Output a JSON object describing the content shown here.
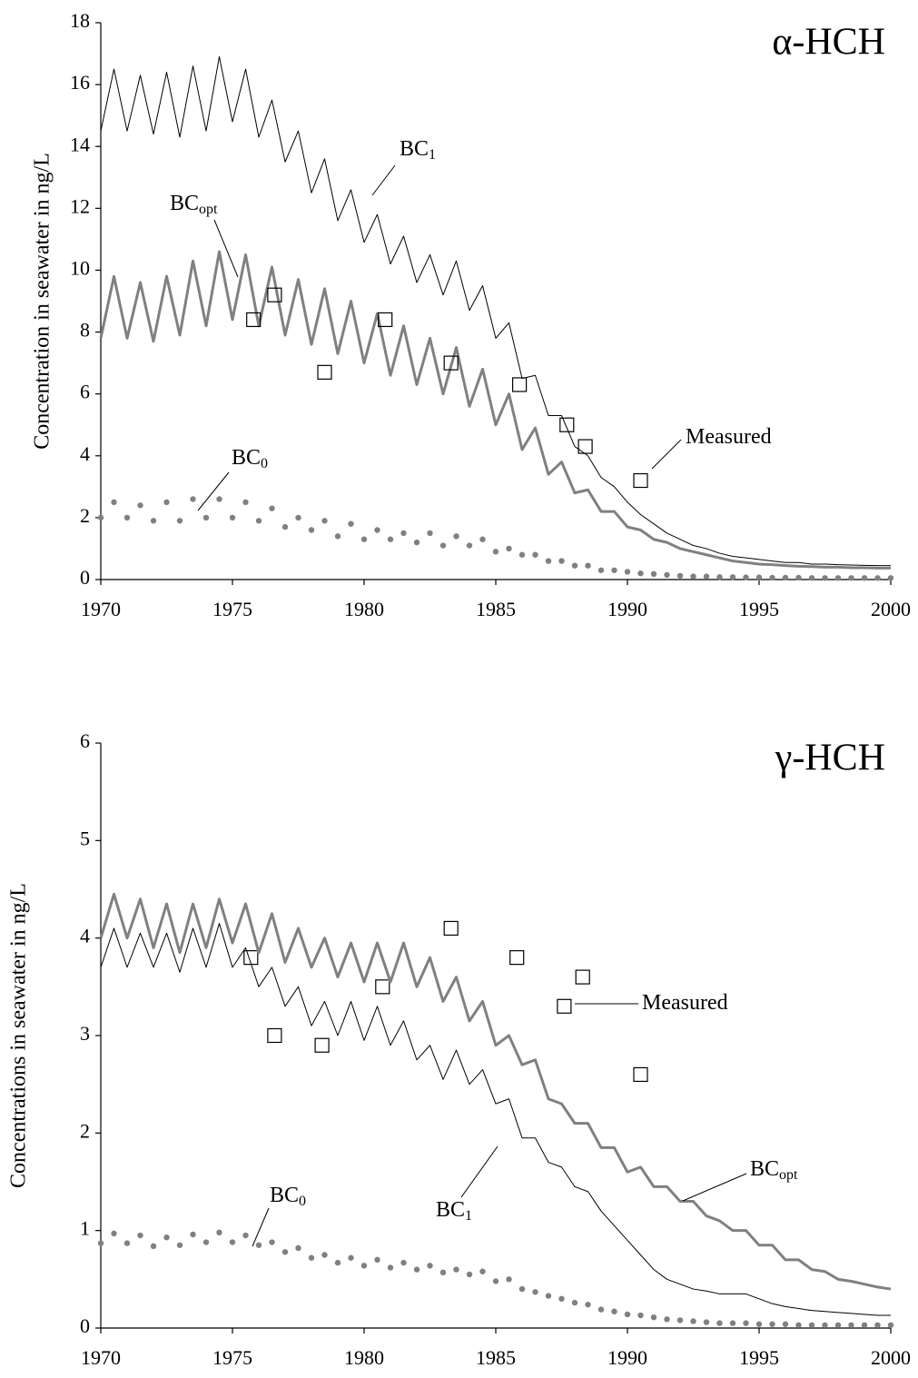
{
  "chart_data": [
    {
      "type": "line",
      "title": "α-HCH",
      "y_label": "Concentration in seawater in ng/L",
      "xlim": [
        1970,
        2000
      ],
      "xticks": [
        1970,
        1975,
        1980,
        1985,
        1990,
        1995,
        2000
      ],
      "ylim": [
        0,
        18
      ],
      "yticks": [
        0,
        2,
        4,
        6,
        8,
        10,
        12,
        14,
        16,
        18
      ],
      "grid": false,
      "x": [
        1970,
        1970.5,
        1971,
        1971.5,
        1972,
        1972.5,
        1973,
        1973.5,
        1974,
        1974.5,
        1975,
        1975.5,
        1976,
        1976.5,
        1977,
        1977.5,
        1978,
        1978.5,
        1979,
        1979.5,
        1980,
        1980.5,
        1981,
        1981.5,
        1982,
        1982.5,
        1983,
        1983.5,
        1984,
        1984.5,
        1985,
        1985.5,
        1986,
        1986.5,
        1987,
        1987.5,
        1988,
        1988.5,
        1989,
        1989.5,
        1990,
        1990.5,
        1991,
        1991.5,
        1992,
        1992.5,
        1993,
        1993.5,
        1994,
        1994.5,
        1995,
        1995.5,
        1996,
        1996.5,
        1997,
        1997.5,
        1998,
        1998.5,
        1999,
        1999.5,
        2000
      ],
      "series": [
        {
          "name": "BC",
          "subscript": "1",
          "style": "line",
          "color": "#000000",
          "width": 1,
          "values": [
            14.5,
            16.5,
            14.5,
            16.3,
            14.4,
            16.4,
            14.3,
            16.6,
            14.5,
            16.9,
            14.8,
            16.5,
            14.3,
            15.5,
            13.5,
            14.5,
            12.5,
            13.6,
            11.6,
            12.6,
            10.9,
            11.8,
            10.2,
            11.1,
            9.6,
            10.5,
            9.2,
            10.3,
            8.7,
            9.5,
            7.8,
            8.3,
            6.5,
            6.6,
            5.3,
            5.3,
            4.3,
            4.0,
            3.3,
            3.0,
            2.5,
            2.1,
            1.8,
            1.5,
            1.3,
            1.1,
            1.0,
            0.85,
            0.75,
            0.7,
            0.65,
            0.6,
            0.55,
            0.55,
            0.5,
            0.5,
            0.48,
            0.47,
            0.46,
            0.45,
            0.45
          ]
        },
        {
          "name": "BC",
          "subscript": "opt",
          "style": "line",
          "color": "#808080",
          "width": 3,
          "values": [
            7.8,
            9.8,
            7.8,
            9.6,
            7.7,
            9.8,
            7.9,
            10.3,
            8.2,
            10.6,
            8.4,
            10.5,
            8.2,
            10.1,
            7.9,
            9.7,
            7.6,
            9.4,
            7.3,
            9.0,
            7.0,
            8.6,
            6.6,
            8.2,
            6.3,
            7.8,
            6.0,
            7.5,
            5.6,
            6.8,
            5.0,
            6.0,
            4.2,
            4.9,
            3.4,
            3.8,
            2.8,
            2.9,
            2.2,
            2.2,
            1.7,
            1.6,
            1.3,
            1.2,
            1.0,
            0.9,
            0.8,
            0.7,
            0.6,
            0.55,
            0.5,
            0.48,
            0.45,
            0.43,
            0.42,
            0.4,
            0.4,
            0.38,
            0.38,
            0.37,
            0.37
          ]
        },
        {
          "name": "BC",
          "subscript": "0",
          "style": "dots",
          "color": "#808080",
          "values": [
            2.0,
            2.5,
            2.0,
            2.4,
            1.9,
            2.5,
            1.9,
            2.6,
            2.0,
            2.6,
            2.0,
            2.5,
            1.9,
            2.3,
            1.7,
            2.0,
            1.6,
            1.9,
            1.4,
            1.8,
            1.3,
            1.6,
            1.3,
            1.5,
            1.2,
            1.5,
            1.1,
            1.4,
            1.1,
            1.3,
            0.9,
            1.0,
            0.8,
            0.8,
            0.6,
            0.6,
            0.45,
            0.45,
            0.3,
            0.3,
            0.25,
            0.2,
            0.18,
            0.15,
            0.12,
            0.1,
            0.1,
            0.08,
            0.08,
            0.07,
            0.07,
            0.06,
            0.06,
            0.06,
            0.05,
            0.05,
            0.05,
            0.05,
            0.05,
            0.05,
            0.05
          ]
        },
        {
          "name": "Measured",
          "style": "squares",
          "color": "#000000",
          "x": [
            1975.8,
            1976.6,
            1978.5,
            1980.8,
            1983.3,
            1985.9,
            1987.7,
            1988.4,
            1990.5
          ],
          "values": [
            8.4,
            9.2,
            6.7,
            8.4,
            7.0,
            6.3,
            5.0,
            4.3,
            3.2
          ]
        }
      ]
    },
    {
      "type": "line",
      "title": "γ-HCH",
      "y_label": "Concentrations in seawater in ng/L",
      "xlim": [
        1970,
        2000
      ],
      "xticks": [
        1970,
        1975,
        1980,
        1985,
        1990,
        1995,
        2000
      ],
      "ylim": [
        0,
        6
      ],
      "yticks": [
        0,
        1,
        2,
        3,
        4,
        5,
        6
      ],
      "grid": false,
      "x": [
        1970,
        1970.5,
        1971,
        1971.5,
        1972,
        1972.5,
        1973,
        1973.5,
        1974,
        1974.5,
        1975,
        1975.5,
        1976,
        1976.5,
        1977,
        1977.5,
        1978,
        1978.5,
        1979,
        1979.5,
        1980,
        1980.5,
        1981,
        1981.5,
        1982,
        1982.5,
        1983,
        1983.5,
        1984,
        1984.5,
        1985,
        1985.5,
        1986,
        1986.5,
        1987,
        1987.5,
        1988,
        1988.5,
        1989,
        1989.5,
        1990,
        1990.5,
        1991,
        1991.5,
        1992,
        1992.5,
        1993,
        1993.5,
        1994,
        1994.5,
        1995,
        1995.5,
        1996,
        1996.5,
        1997,
        1997.5,
        1998,
        1998.5,
        1999,
        1999.5,
        2000
      ],
      "series": [
        {
          "name": "Measured",
          "style": "squares",
          "color": "#000000",
          "x": [
            1975.7,
            1976.6,
            1978.4,
            1980.7,
            1983.3,
            1985.8,
            1987.6,
            1988.3,
            1990.5
          ],
          "values": [
            3.8,
            3.0,
            2.9,
            3.5,
            4.1,
            3.8,
            3.3,
            3.6,
            2.6
          ]
        },
        {
          "name": "BC",
          "subscript": "opt",
          "style": "line",
          "color": "#808080",
          "width": 3,
          "values": [
            4.0,
            4.45,
            4.0,
            4.4,
            3.9,
            4.35,
            3.85,
            4.35,
            3.9,
            4.4,
            3.95,
            4.35,
            3.85,
            4.25,
            3.75,
            4.1,
            3.7,
            4.0,
            3.6,
            3.95,
            3.55,
            3.95,
            3.55,
            3.95,
            3.5,
            3.8,
            3.35,
            3.6,
            3.15,
            3.35,
            2.9,
            3.0,
            2.7,
            2.75,
            2.35,
            2.3,
            2.1,
            2.1,
            1.85,
            1.85,
            1.6,
            1.65,
            1.45,
            1.45,
            1.3,
            1.3,
            1.15,
            1.1,
            1.0,
            1.0,
            0.85,
            0.85,
            0.7,
            0.7,
            0.6,
            0.58,
            0.5,
            0.48,
            0.45,
            0.42,
            0.4
          ]
        },
        {
          "name": "BC",
          "subscript": "1",
          "style": "line",
          "color": "#000000",
          "width": 1,
          "values": [
            3.7,
            4.1,
            3.7,
            4.05,
            3.7,
            4.05,
            3.65,
            4.1,
            3.7,
            4.15,
            3.7,
            3.9,
            3.5,
            3.7,
            3.3,
            3.5,
            3.1,
            3.35,
            3.0,
            3.35,
            2.95,
            3.3,
            2.9,
            3.15,
            2.75,
            2.9,
            2.55,
            2.85,
            2.5,
            2.65,
            2.3,
            2.35,
            1.95,
            1.95,
            1.7,
            1.65,
            1.45,
            1.4,
            1.2,
            1.05,
            0.9,
            0.75,
            0.6,
            0.5,
            0.45,
            0.4,
            0.38,
            0.35,
            0.35,
            0.35,
            0.3,
            0.25,
            0.22,
            0.2,
            0.18,
            0.17,
            0.16,
            0.15,
            0.14,
            0.13,
            0.13
          ]
        },
        {
          "name": "BC",
          "subscript": "0",
          "style": "dots",
          "color": "#808080",
          "values": [
            0.87,
            0.97,
            0.87,
            0.95,
            0.84,
            0.93,
            0.85,
            0.96,
            0.88,
            0.98,
            0.88,
            0.95,
            0.85,
            0.88,
            0.78,
            0.82,
            0.72,
            0.75,
            0.67,
            0.72,
            0.64,
            0.7,
            0.62,
            0.67,
            0.6,
            0.64,
            0.57,
            0.6,
            0.55,
            0.58,
            0.48,
            0.5,
            0.4,
            0.37,
            0.33,
            0.3,
            0.26,
            0.24,
            0.19,
            0.17,
            0.14,
            0.13,
            0.11,
            0.09,
            0.08,
            0.07,
            0.06,
            0.05,
            0.05,
            0.05,
            0.04,
            0.04,
            0.04,
            0.03,
            0.03,
            0.03,
            0.03,
            0.03,
            0.03,
            0.03,
            0.03
          ]
        }
      ]
    }
  ]
}
